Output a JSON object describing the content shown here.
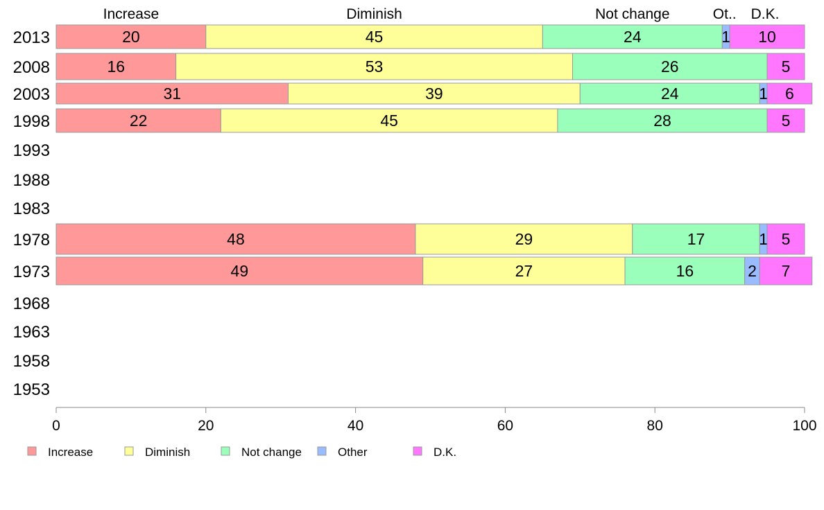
{
  "chart_data": {
    "type": "bar",
    "orientation": "horizontal",
    "stacked": true,
    "categories": [
      "2013",
      "2008",
      "2003",
      "1998",
      "1993",
      "1988",
      "1983",
      "1978",
      "1973",
      "1968",
      "1963",
      "1958",
      "1953"
    ],
    "series": [
      {
        "name": "Increase",
        "color": "#ff9999",
        "values": [
          20,
          16,
          31,
          22,
          null,
          null,
          null,
          48,
          49,
          null,
          null,
          null,
          null
        ]
      },
      {
        "name": "Diminish",
        "color": "#ffff99",
        "values": [
          45,
          53,
          39,
          45,
          null,
          null,
          null,
          29,
          27,
          null,
          null,
          null,
          null
        ]
      },
      {
        "name": "Not change",
        "color": "#99ffbb",
        "values": [
          24,
          26,
          24,
          28,
          null,
          null,
          null,
          17,
          16,
          null,
          null,
          null,
          null
        ]
      },
      {
        "name": "Other",
        "color": "#99bbff",
        "values": [
          1,
          0,
          1,
          0,
          null,
          null,
          null,
          1,
          2,
          null,
          null,
          null,
          null
        ]
      },
      {
        "name": "D.K.",
        "color": "#ff77ff",
        "values": [
          10,
          5,
          6,
          5,
          null,
          null,
          null,
          5,
          7,
          null,
          null,
          null,
          null
        ]
      }
    ],
    "top_labels": [
      "Increase",
      "Diminish",
      "Not change",
      "Ot..",
      "D.K."
    ],
    "xlim": [
      0,
      100
    ],
    "xticks": [
      0,
      20,
      40,
      60,
      80,
      100
    ],
    "xlabel": "",
    "ylabel": "",
    "grid": false,
    "legend_position": "bottom-left"
  }
}
